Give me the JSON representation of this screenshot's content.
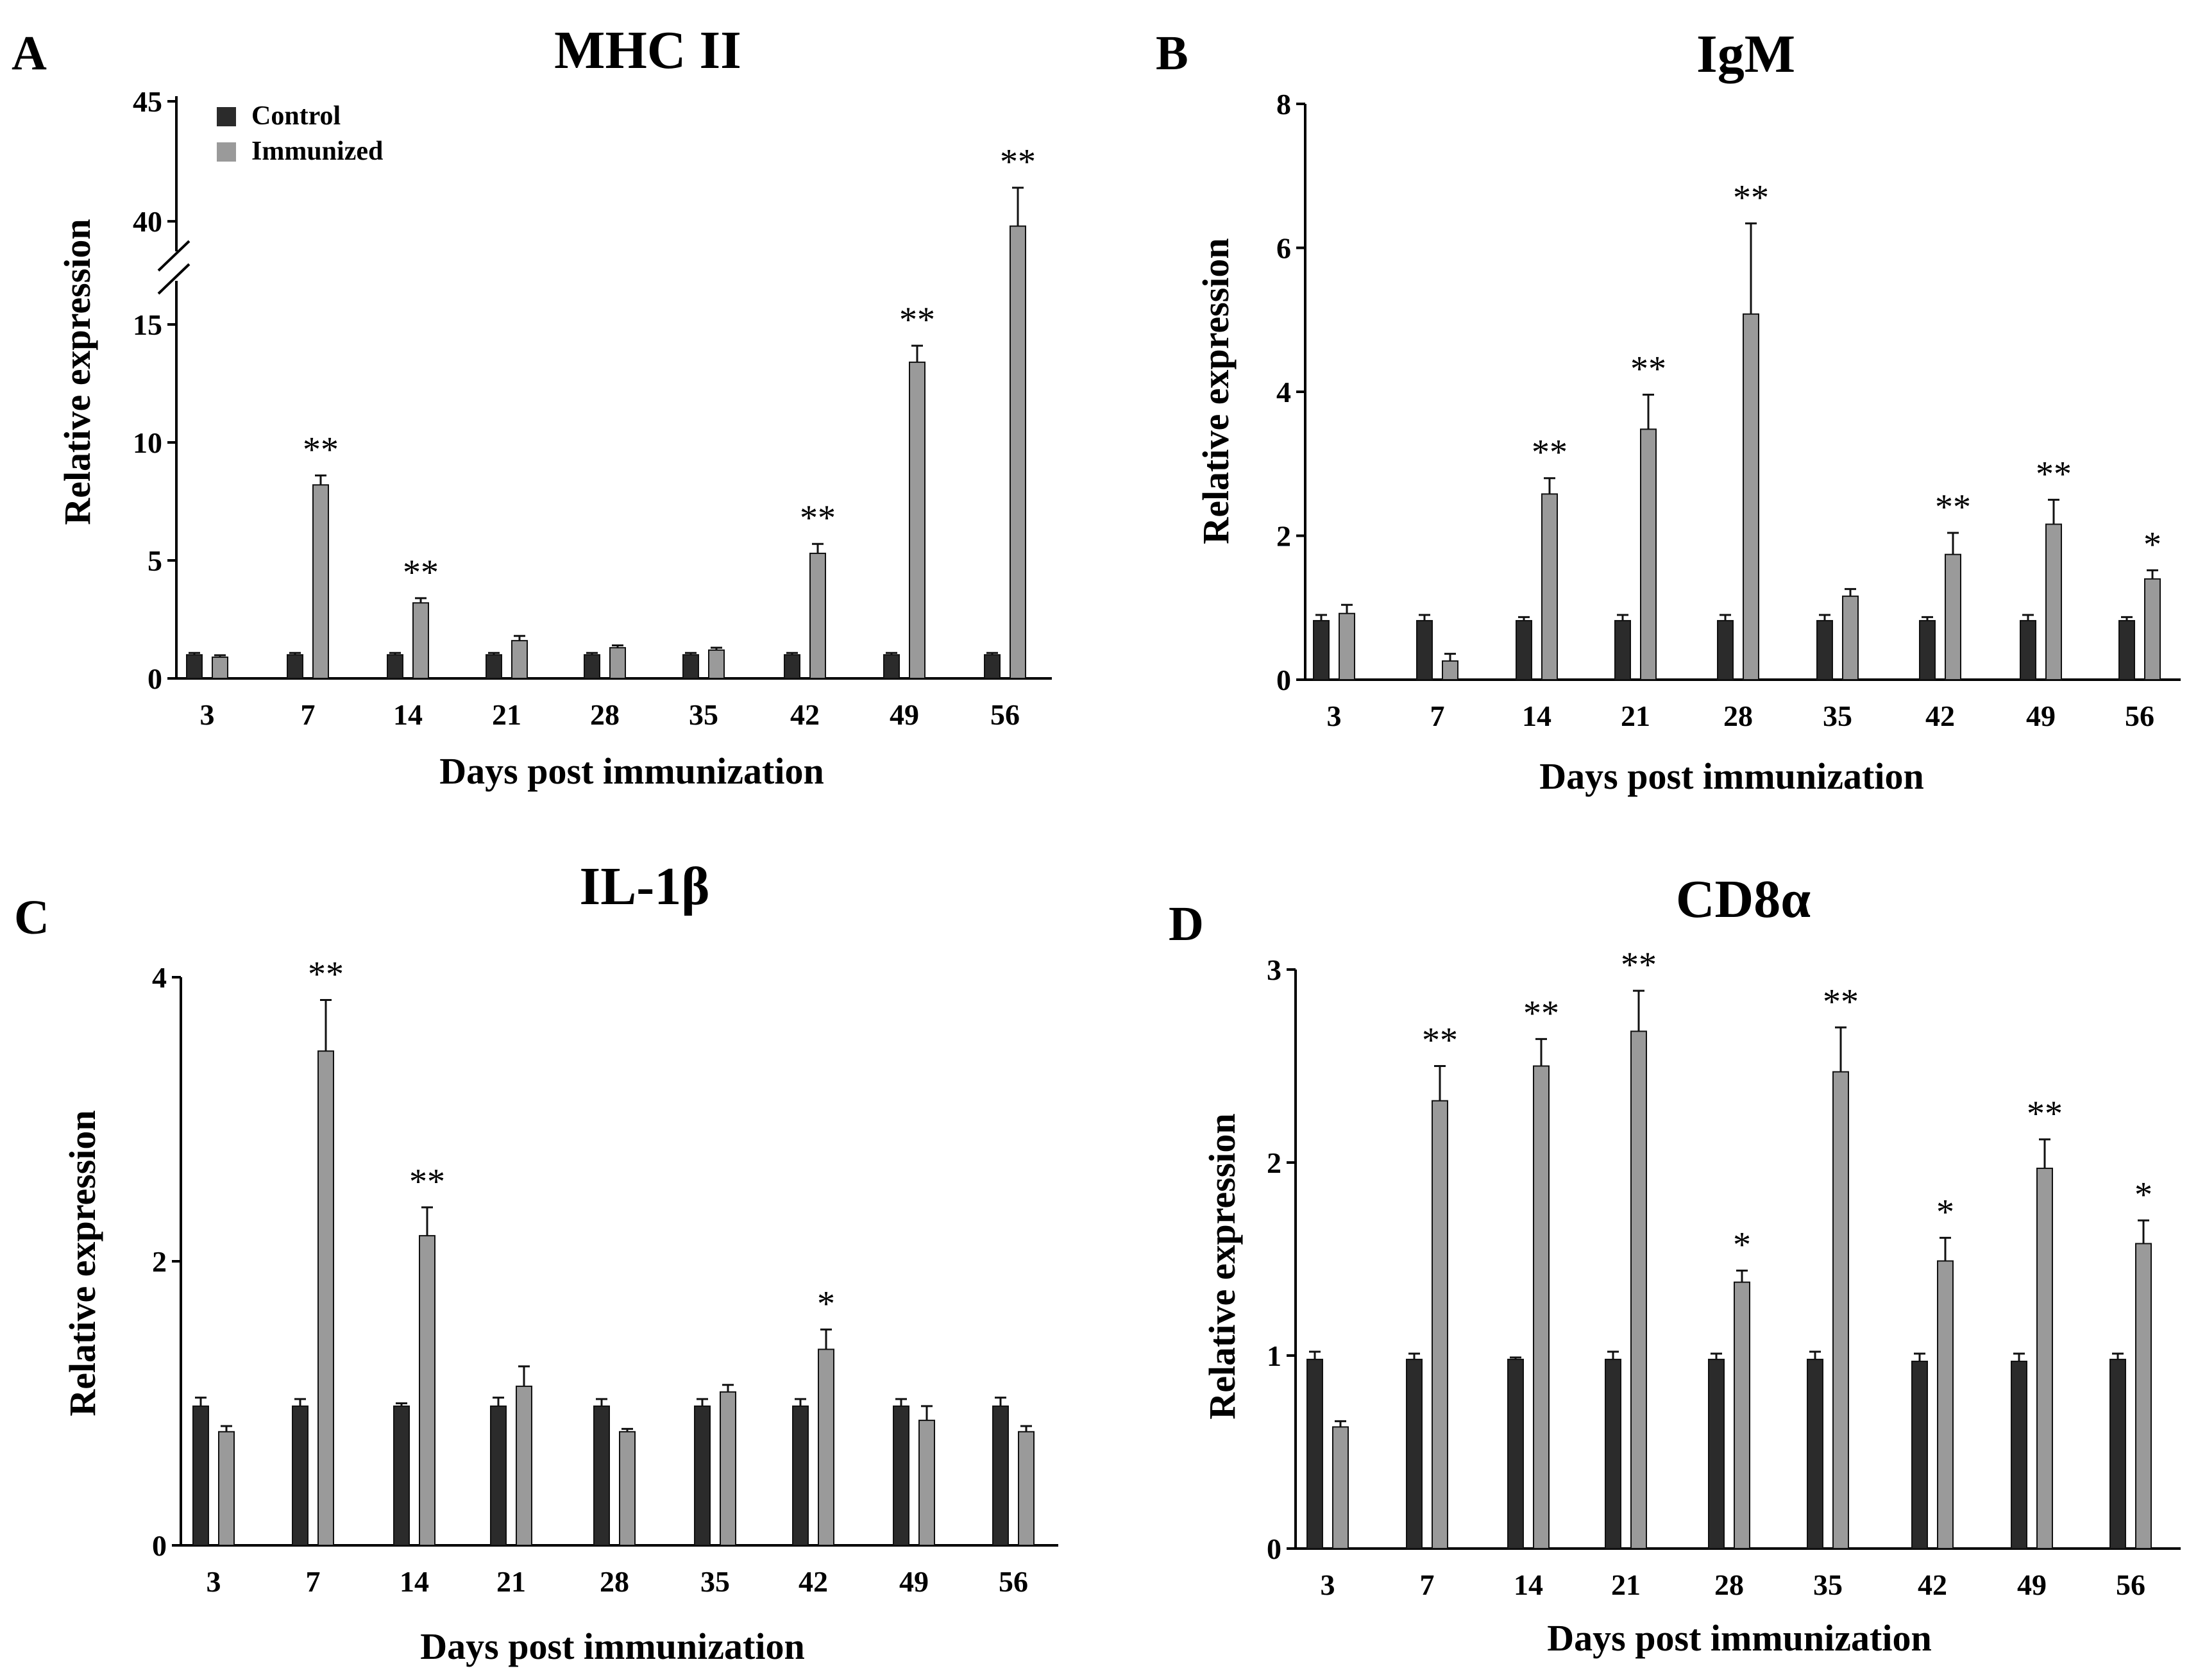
{
  "colors": {
    "control": "#2b2b2b",
    "immunized": "#9a9a9a",
    "axis": "#000000"
  },
  "legend": {
    "control_label": "Control",
    "immunized_label": "Immunized"
  },
  "chart_data": [
    {
      "panel": "A",
      "type": "bar",
      "title": "MHC II",
      "xlabel": "Days post immunization",
      "ylabel": "Relative expression",
      "categories": [
        "3",
        "7",
        "14",
        "21",
        "28",
        "35",
        "42",
        "49",
        "56"
      ],
      "axis_break": {
        "lower": [
          0,
          15
        ],
        "upper": [
          38,
          45
        ]
      },
      "yticks": [
        0,
        5,
        10,
        15,
        40,
        45
      ],
      "ytick_labels": [
        "0",
        "5",
        "10",
        "15",
        "40",
        "45"
      ],
      "legend_position": "top-left",
      "series": [
        {
          "name": "Control",
          "values": [
            1.0,
            1.0,
            1.0,
            1.0,
            1.0,
            1.0,
            1.0,
            1.0,
            1.0
          ],
          "errors": [
            0.08,
            0.08,
            0.08,
            0.08,
            0.08,
            0.08,
            0.08,
            0.08,
            0.08
          ]
        },
        {
          "name": "Immunized",
          "values": [
            0.9,
            8.2,
            3.2,
            1.6,
            1.3,
            1.2,
            5.3,
            13.4,
            39.8
          ],
          "errors": [
            0.08,
            0.4,
            0.2,
            0.2,
            0.1,
            0.1,
            0.4,
            0.7,
            1.6
          ]
        }
      ],
      "significance": [
        "",
        "**",
        "**",
        "",
        "",
        "",
        "**",
        "**",
        "**"
      ]
    },
    {
      "panel": "B",
      "type": "bar",
      "title": "IgM",
      "xlabel": "Days post immunization",
      "ylabel": "Relative expression",
      "categories": [
        "3",
        "7",
        "14",
        "21",
        "28",
        "35",
        "42",
        "49",
        "56"
      ],
      "ylim": [
        0,
        8
      ],
      "yticks": [
        0,
        2,
        4,
        6,
        8
      ],
      "ytick_labels": [
        "0",
        "2",
        "4",
        "6",
        "8"
      ],
      "series": [
        {
          "name": "Control",
          "values": [
            0.82,
            0.82,
            0.82,
            0.82,
            0.82,
            0.82,
            0.82,
            0.82,
            0.82
          ],
          "errors": [
            0.08,
            0.08,
            0.05,
            0.08,
            0.08,
            0.08,
            0.05,
            0.08,
            0.05
          ]
        },
        {
          "name": "Immunized",
          "values": [
            0.92,
            0.26,
            2.58,
            3.48,
            5.08,
            1.16,
            1.74,
            2.16,
            1.4
          ],
          "errors": [
            0.12,
            0.1,
            0.22,
            0.48,
            1.26,
            0.1,
            0.3,
            0.34,
            0.12
          ]
        }
      ],
      "significance": [
        "",
        "",
        "**",
        "**",
        "**",
        "",
        "**",
        "**",
        "*"
      ]
    },
    {
      "panel": "C",
      "type": "bar",
      "title": "IL-1β",
      "xlabel": "Days post immunization",
      "ylabel": "Relative expression",
      "categories": [
        "3",
        "7",
        "14",
        "21",
        "28",
        "35",
        "42",
        "49",
        "56"
      ],
      "ylim": [
        0,
        4
      ],
      "yticks": [
        0,
        2,
        4
      ],
      "ytick_labels": [
        "0",
        "2",
        "4"
      ],
      "series": [
        {
          "name": "Control",
          "values": [
            0.98,
            0.98,
            0.98,
            0.98,
            0.98,
            0.98,
            0.98,
            0.98,
            0.98
          ],
          "errors": [
            0.06,
            0.05,
            0.02,
            0.06,
            0.05,
            0.05,
            0.05,
            0.05,
            0.06
          ]
        },
        {
          "name": "Immunized",
          "values": [
            0.8,
            3.48,
            2.18,
            1.12,
            0.8,
            1.08,
            1.38,
            0.88,
            0.8
          ],
          "errors": [
            0.04,
            0.36,
            0.2,
            0.14,
            0.02,
            0.05,
            0.14,
            0.1,
            0.04
          ]
        }
      ],
      "significance": [
        "",
        "**",
        "**",
        "",
        "",
        "",
        "*",
        "",
        ""
      ]
    },
    {
      "panel": "D",
      "type": "bar",
      "title": "CD8α",
      "xlabel": "Days post immunization",
      "ylabel": "Relative expression",
      "categories": [
        "3",
        "7",
        "14",
        "21",
        "28",
        "35",
        "42",
        "49",
        "56"
      ],
      "ylim": [
        0,
        3
      ],
      "yticks": [
        0,
        1,
        2,
        3
      ],
      "ytick_labels": [
        "0",
        "1",
        "2",
        "3"
      ],
      "series": [
        {
          "name": "Control",
          "values": [
            0.98,
            0.98,
            0.98,
            0.98,
            0.98,
            0.98,
            0.97,
            0.97,
            0.98
          ],
          "errors": [
            0.04,
            0.03,
            0.01,
            0.04,
            0.03,
            0.04,
            0.04,
            0.04,
            0.03
          ]
        },
        {
          "name": "Immunized",
          "values": [
            0.63,
            2.32,
            2.5,
            2.68,
            1.38,
            2.47,
            1.49,
            1.97,
            1.58
          ],
          "errors": [
            0.03,
            0.18,
            0.14,
            0.21,
            0.06,
            0.23,
            0.12,
            0.15,
            0.12
          ]
        }
      ],
      "significance": [
        "",
        "**",
        "**",
        "**",
        "*",
        "**",
        "*",
        "**",
        "*"
      ]
    }
  ]
}
